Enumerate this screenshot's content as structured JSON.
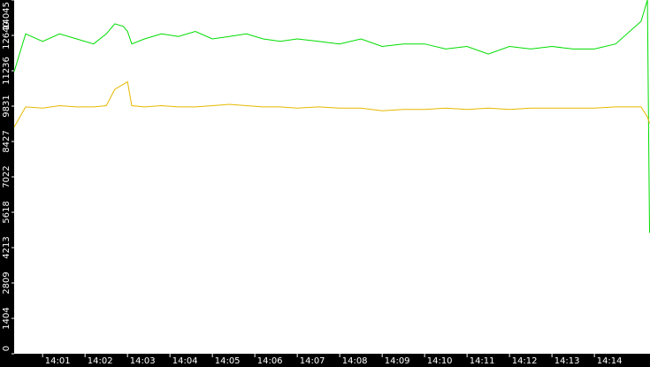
{
  "chart_data": {
    "type": "line",
    "x": [
      0.33,
      0.6,
      1,
      1.4,
      1.8,
      2.2,
      2.5,
      2.7,
      2.9,
      3.0,
      3.1,
      3.4,
      3.8,
      4.2,
      4.6,
      5.0,
      5.4,
      5.8,
      6.2,
      6.6,
      7.0,
      7.5,
      8.0,
      8.5,
      9.0,
      9.5,
      10.0,
      10.5,
      11.0,
      11.5,
      12.0,
      12.5,
      13.0,
      13.5,
      14.0,
      14.5,
      15.1,
      15.25,
      15.3
    ],
    "series": [
      {
        "color": "#00dd00",
        "values": [
          11200,
          12700,
          12400,
          12700,
          12500,
          12300,
          12700,
          13100,
          13000,
          12800,
          12300,
          12500,
          12700,
          12600,
          12800,
          12500,
          12600,
          12700,
          12500,
          12400,
          12500,
          12400,
          12300,
          12500,
          12200,
          12300,
          12300,
          12100,
          12200,
          11900,
          12200,
          12100,
          12200,
          12100,
          12100,
          12300,
          13200,
          14045,
          4800
        ]
      },
      {
        "color": "#e6b800",
        "values": [
          9000,
          9800,
          9750,
          9850,
          9800,
          9800,
          9850,
          10500,
          10700,
          10800,
          9850,
          9800,
          9850,
          9800,
          9800,
          9850,
          9900,
          9850,
          9800,
          9800,
          9750,
          9800,
          9750,
          9750,
          9650,
          9700,
          9700,
          9750,
          9700,
          9750,
          9700,
          9750,
          9750,
          9750,
          9750,
          9800,
          9800,
          9400,
          9150
        ]
      }
    ],
    "xlim": [
      0.33,
      15.31
    ],
    "xticks": [
      {
        "value": 1,
        "label": "14:01"
      },
      {
        "value": 2,
        "label": "14:02"
      },
      {
        "value": 3,
        "label": "14:03"
      },
      {
        "value": 4,
        "label": "14:04"
      },
      {
        "value": 5,
        "label": "14:05"
      },
      {
        "value": 6,
        "label": "14:06"
      },
      {
        "value": 7,
        "label": "14:07"
      },
      {
        "value": 8,
        "label": "14:08"
      },
      {
        "value": 9,
        "label": "14:09"
      },
      {
        "value": 10,
        "label": "14:10"
      },
      {
        "value": 11,
        "label": "14:11"
      },
      {
        "value": 12,
        "label": "14:12"
      },
      {
        "value": 13,
        "label": "14:13"
      },
      {
        "value": 14,
        "label": "14:14"
      }
    ],
    "ylim": [
      0,
      14045
    ],
    "yticks": [
      0,
      1404,
      2809,
      4213,
      5618,
      7022,
      8427,
      9831,
      11236,
      12640,
      14045
    ]
  }
}
